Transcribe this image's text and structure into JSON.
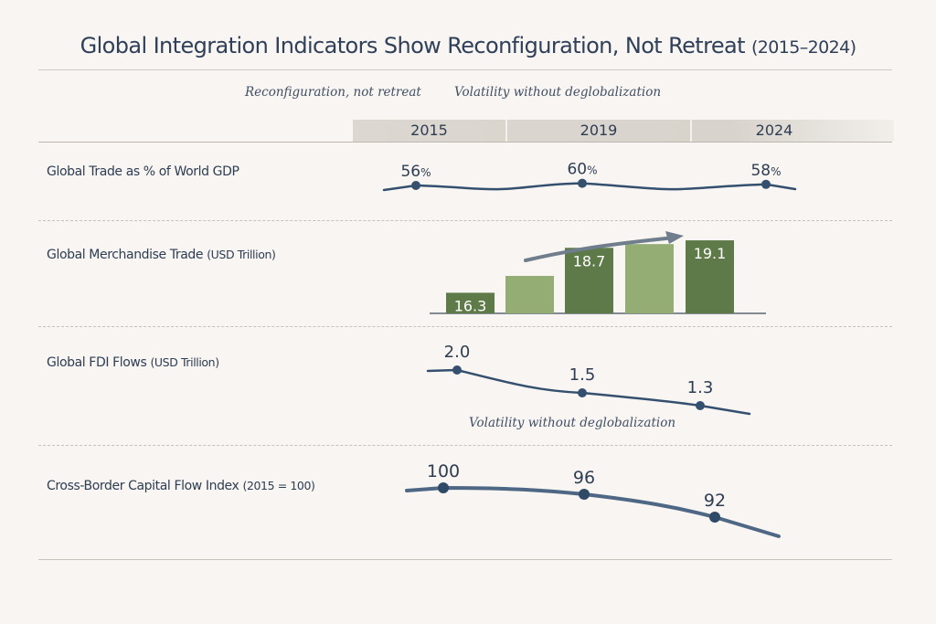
{
  "title": {
    "main": "Global Integration Indicators Show Reconfiguration, Not Retreat",
    "years": "(2015–2024)"
  },
  "subtitles": [
    "Reconfiguration, not retreat",
    "Volatility without deglobalization"
  ],
  "years": [
    "2015",
    "2019",
    "2024"
  ],
  "colors": {
    "line": "#34506e",
    "bar_dark": "#5e7a48",
    "bar_light": "#93ad74",
    "arrow": "#6f7d8c",
    "text": "#2e3e52"
  },
  "chart_data": [
    {
      "type": "line",
      "title": "Global Trade as % of World GDP",
      "unit": "%",
      "x": [
        "2015",
        "2019",
        "2024"
      ],
      "values": [
        56,
        60,
        58
      ],
      "labels": [
        "56%",
        "60%",
        "58%"
      ]
    },
    {
      "type": "bar",
      "title": "Global Merchandise Trade",
      "unit": "(USD Trillion)",
      "categories": [
        "2015",
        "",
        "2019",
        "",
        "2024"
      ],
      "values": [
        16.3,
        17.2,
        18.7,
        18.9,
        19.1
      ],
      "labels": [
        "16.3",
        "",
        "18.7",
        "",
        "19.1"
      ],
      "highlight": [
        true,
        false,
        true,
        false,
        true
      ]
    },
    {
      "type": "line",
      "title": "Global FDI Flows",
      "unit": "(USD Trillion)",
      "x": [
        "2015",
        "2019",
        "2024"
      ],
      "values": [
        2.0,
        1.5,
        1.3
      ],
      "labels": [
        "2.0",
        "1.5",
        "1.3"
      ],
      "annotation": "Volatility without deglobalization"
    },
    {
      "type": "line",
      "title": "Cross-Border Capital Flow Index",
      "unit": "(2015 = 100)",
      "x": [
        "2015",
        "2019",
        "2024"
      ],
      "values": [
        100,
        96,
        92
      ],
      "labels": [
        "100",
        "96",
        "92"
      ]
    }
  ]
}
